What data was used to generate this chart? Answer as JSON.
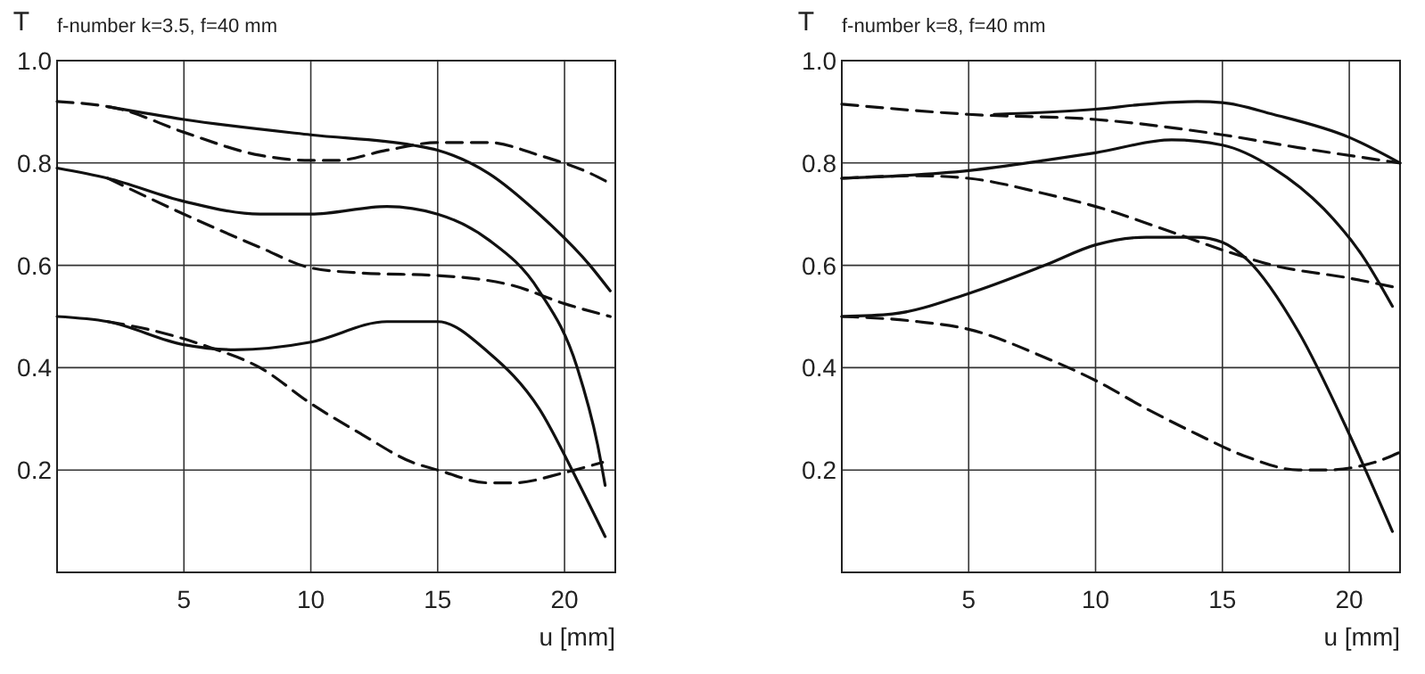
{
  "chart_data": [
    {
      "type": "line",
      "title": "f-number k=3.5, f=40 mm",
      "xlabel": "u [mm]",
      "ylabel": "T",
      "xlim": [
        0,
        22
      ],
      "ylim": [
        0,
        1
      ],
      "xticks": [
        5,
        10,
        15,
        20
      ],
      "yticks": [
        0.2,
        0.4,
        0.6,
        0.8,
        {
          "value": 1,
          "label": "1.0"
        }
      ],
      "grid": true,
      "series": [
        {
          "color": "#111111",
          "line_style": "solid",
          "x": [
            2,
            5,
            10,
            14,
            15,
            17,
            19,
            21,
            21.8
          ],
          "values": [
            0.91,
            0.885,
            0.855,
            0.835,
            0.825,
            0.78,
            0.7,
            0.6,
            0.55
          ]
        },
        {
          "color": "#111111",
          "line_style": "dashed",
          "x": [
            0,
            2.5,
            5,
            8,
            10,
            11,
            13,
            15,
            17,
            19,
            21,
            21.8
          ],
          "values": [
            0.92,
            0.905,
            0.86,
            0.815,
            0.805,
            0.805,
            0.825,
            0.84,
            0.84,
            0.815,
            0.78,
            0.76
          ]
        },
        {
          "color": "#111111",
          "line_style": "solid",
          "x": [
            0,
            2,
            5,
            8,
            10,
            13,
            15,
            17,
            19,
            20.5,
            21.3,
            21.6
          ],
          "values": [
            0.79,
            0.77,
            0.725,
            0.7,
            0.7,
            0.715,
            0.7,
            0.65,
            0.55,
            0.4,
            0.25,
            0.17
          ]
        },
        {
          "color": "#111111",
          "line_style": "dashed",
          "x": [
            2,
            5,
            8,
            10,
            12,
            15,
            18,
            20,
            21.8
          ],
          "values": [
            0.77,
            0.7,
            0.635,
            0.595,
            0.585,
            0.58,
            0.56,
            0.525,
            0.5
          ]
        },
        {
          "color": "#111111",
          "line_style": "solid",
          "x": [
            0,
            2,
            5,
            7,
            10,
            13,
            15,
            17,
            19,
            20.5,
            21.6
          ],
          "values": [
            0.5,
            0.49,
            0.445,
            0.435,
            0.45,
            0.49,
            0.49,
            0.43,
            0.32,
            0.18,
            0.07
          ]
        },
        {
          "color": "#111111",
          "line_style": "dashed",
          "x": [
            2,
            4,
            6,
            8,
            10,
            12,
            14,
            15,
            17,
            18,
            20,
            21.5
          ],
          "values": [
            0.49,
            0.47,
            0.44,
            0.4,
            0.33,
            0.27,
            0.215,
            0.2,
            0.175,
            0.175,
            0.195,
            0.215
          ]
        }
      ]
    },
    {
      "type": "line",
      "title": "f-number k=8, f=40 mm",
      "xlabel": "u [mm]",
      "ylabel": "T",
      "xlim": [
        0,
        22
      ],
      "ylim": [
        0,
        1
      ],
      "xticks": [
        5,
        10,
        15,
        20
      ],
      "yticks": [
        0.2,
        0.4,
        0.6,
        0.8,
        {
          "value": 1,
          "label": "1.0"
        }
      ],
      "grid": true,
      "series": [
        {
          "color": "#111111",
          "line_style": "solid",
          "x": [
            6,
            10,
            12,
            14,
            15,
            17,
            20,
            22
          ],
          "values": [
            0.895,
            0.905,
            0.915,
            0.92,
            0.918,
            0.895,
            0.85,
            0.8
          ]
        },
        {
          "color": "#111111",
          "line_style": "dashed",
          "x": [
            0,
            5,
            10,
            15,
            18,
            22
          ],
          "values": [
            0.915,
            0.895,
            0.885,
            0.855,
            0.83,
            0.8
          ]
        },
        {
          "color": "#111111",
          "line_style": "solid",
          "x": [
            0,
            5,
            8,
            10,
            13,
            15,
            17,
            19,
            20.5,
            21.7
          ],
          "values": [
            0.77,
            0.785,
            0.805,
            0.82,
            0.845,
            0.835,
            0.79,
            0.71,
            0.62,
            0.52
          ]
        },
        {
          "color": "#111111",
          "line_style": "dashed",
          "x": [
            0,
            3,
            5,
            8,
            10,
            13,
            15,
            17,
            20,
            22
          ],
          "values": [
            0.77,
            0.775,
            0.77,
            0.74,
            0.715,
            0.665,
            0.63,
            0.6,
            0.575,
            0.555
          ]
        },
        {
          "color": "#111111",
          "line_style": "solid",
          "x": [
            0,
            2,
            5,
            8,
            10,
            12,
            14,
            15,
            16,
            18,
            20,
            21.7
          ],
          "values": [
            0.5,
            0.505,
            0.545,
            0.6,
            0.64,
            0.655,
            0.655,
            0.645,
            0.61,
            0.47,
            0.27,
            0.08
          ]
        },
        {
          "color": "#111111",
          "line_style": "dashed",
          "x": [
            0,
            3,
            5,
            8,
            10,
            12,
            14,
            16,
            18,
            19,
            21,
            22
          ],
          "values": [
            0.5,
            0.49,
            0.475,
            0.42,
            0.375,
            0.32,
            0.27,
            0.225,
            0.2,
            0.2,
            0.215,
            0.235
          ]
        }
      ]
    }
  ]
}
